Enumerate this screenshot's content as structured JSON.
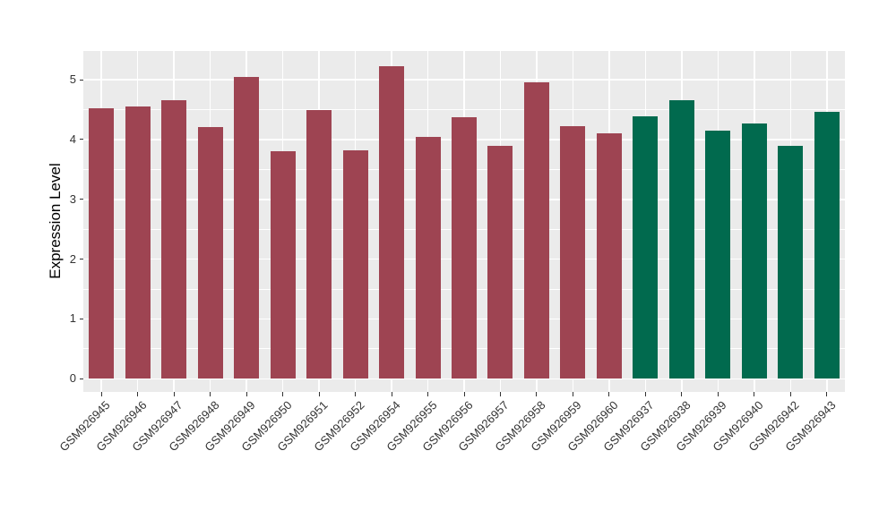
{
  "figure": {
    "background": "#FFFFFF",
    "panel_background": "#EBEBEB",
    "grid_color": "#FFFFFF",
    "tick_mark_color": "#333333",
    "axis_text_color": "#333333",
    "axis_title_color": "#000000"
  },
  "chart_data": {
    "type": "bar",
    "title": "",
    "xlabel": "",
    "ylabel": "Expression Level",
    "ylim": [
      -0.22,
      5.48
    ],
    "yticks": [
      0,
      1,
      2,
      3,
      4,
      5
    ],
    "yticks_minor": [
      0.5,
      1.5,
      2.5,
      3.5,
      4.5
    ],
    "grid": true,
    "legend_position": "none",
    "categories": [
      "GSM926945",
      "GSM926946",
      "GSM926947",
      "GSM926948",
      "GSM926949",
      "GSM926950",
      "GSM926951",
      "GSM926952",
      "GSM926954",
      "GSM926955",
      "GSM926956",
      "GSM926957",
      "GSM926958",
      "GSM926959",
      "GSM926960",
      "GSM926937",
      "GSM926938",
      "GSM926939",
      "GSM926940",
      "GSM926942",
      "GSM926943"
    ],
    "values": [
      4.53,
      4.55,
      4.65,
      4.21,
      5.05,
      3.81,
      4.49,
      3.82,
      5.23,
      4.04,
      4.37,
      3.89,
      4.95,
      4.23,
      4.1,
      4.39,
      4.66,
      4.15,
      4.27,
      3.9,
      4.47
    ],
    "groups": [
      "group1",
      "group1",
      "group1",
      "group1",
      "group1",
      "group1",
      "group1",
      "group1",
      "group1",
      "group1",
      "group1",
      "group1",
      "group1",
      "group1",
      "group1",
      "group2",
      "group2",
      "group2",
      "group2",
      "group2",
      "group2"
    ],
    "group_colors": {
      "group1": "#9E4452",
      "group2": "#016A4E"
    }
  }
}
